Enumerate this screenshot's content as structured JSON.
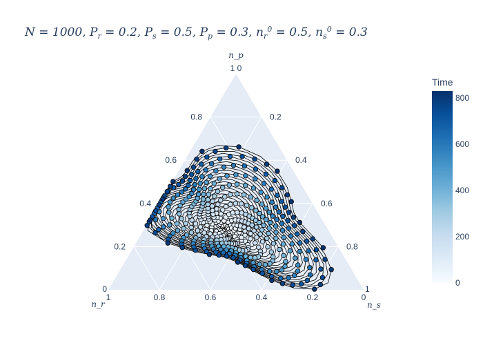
{
  "chart_data": {
    "type": "scatter",
    "subtype": "ternary-trajectory",
    "title": "N = 1000, P_r = 0.2, P_s = 0.5, P_p = 0.3, n_r^0 = 0.5, n_s^0 = 0.3",
    "axes": {
      "a": {
        "label": "n_p",
        "ticks": [
          "0.2",
          "0.4",
          "0.6",
          "0.8",
          "1"
        ]
      },
      "b": {
        "label": "n_r",
        "ticks": [
          "0.2",
          "0.4",
          "0.6",
          "0.8",
          "1"
        ]
      },
      "c": {
        "label": "n_s",
        "ticks": [
          "0.2",
          "0.4",
          "0.6",
          "0.8",
          "1"
        ]
      },
      "corner_ticks": {
        "top": "1 0",
        "left_a": "0",
        "left_c": "1",
        "right": "1",
        "right_c": "0"
      },
      "bottom_tick_labels": [
        "1",
        "0.8",
        "0.6",
        "0.4",
        "0.2",
        "0"
      ],
      "left_tick_labels": [
        "0.2",
        "0.4",
        "0.6",
        "0.8"
      ],
      "right_tick_labels": [
        "0.2",
        "0.4",
        "0.6",
        "0.8"
      ]
    },
    "colorbar": {
      "title": "Time",
      "colorscale": "Blues",
      "range": [
        0,
        830
      ],
      "ticks": [
        "0",
        "200",
        "400",
        "600",
        "800"
      ]
    },
    "series": [
      {
        "description": "trajectory spiral",
        "start": {
          "n_r": 0.5,
          "n_s": 0.3,
          "n_p": 0.2
        },
        "n_points": 830,
        "marker_color_by": "time",
        "line": true
      }
    ],
    "grid": true,
    "background_color": "#e5ecf6"
  }
}
